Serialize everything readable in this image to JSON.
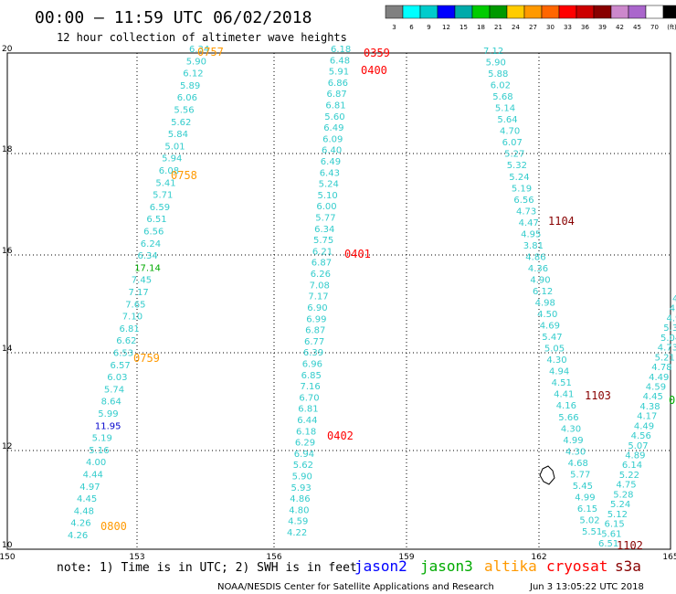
{
  "header": {
    "title": "00:00 – 11:59 UTC 06/02/2018",
    "subtitle": "12 hour collection of altimeter wave heights"
  },
  "colorbar": {
    "labels": [
      "3",
      "6",
      "9",
      "12",
      "15",
      "18",
      "21",
      "24",
      "27",
      "30",
      "33",
      "36",
      "39",
      "42",
      "45",
      "70",
      "(ft)"
    ],
    "colors": [
      "#808080",
      "#00ffff",
      "#00cccc",
      "#0000ff",
      "#00aaaa",
      "#00cc00",
      "#009900",
      "#ffcc00",
      "#ff9900",
      "#ff6600",
      "#ff0000",
      "#cc0000",
      "#880000",
      "#cc88cc",
      "#aa66cc",
      "#ffffff",
      "#000000"
    ]
  },
  "axes": {
    "lon_ticks": [
      "150",
      "153",
      "156",
      "159",
      "162",
      "165"
    ],
    "lat_ticks": [
      "10",
      "12",
      "14",
      "16",
      "18",
      "20"
    ]
  },
  "tracks": [
    {
      "id": "track-a",
      "color": "#33cccc",
      "values": [
        "6.34",
        "5.90",
        "6.12",
        "5.89",
        "6.06",
        "5.56",
        "5.62",
        "5.84",
        "5.01",
        "5.94",
        "6.08",
        "5.41",
        "5.71",
        "6.59",
        "6.51",
        "6.56",
        "6.24",
        "6.34",
        "17.14",
        "7.45",
        "7.17",
        "7.65",
        "7.10",
        "6.81",
        "6.62",
        "6.53",
        "6.57",
        "6.03",
        "5.74",
        "8.64",
        "5.99",
        "11.95",
        "5.19",
        "5.16",
        "4.00",
        "4.44",
        "4.97",
        "4.45",
        "4.48",
        "4.26",
        "4.26"
      ],
      "value_colors": {
        "18": "#00aa00",
        "31": "#0000cc"
      }
    },
    {
      "id": "track-b",
      "color": "#33cccc",
      "values": [
        "6.18",
        "6.48",
        "5.91",
        "6.86",
        "6.87",
        "6.81",
        "5.60",
        "6.49",
        "6.09",
        "6.40",
        "6.49",
        "6.43",
        "5.24",
        "5.10",
        "6.00",
        "5.77",
        "6.34",
        "5.75",
        "6.21",
        "6.87",
        "6.26",
        "7.08",
        "7.17",
        "6.90",
        "6.99",
        "6.87",
        "6.77",
        "6.39",
        "6.96",
        "6.85",
        "7.16",
        "6.70",
        "6.81",
        "6.44",
        "6.18",
        "6.29",
        "6.94",
        "5.62",
        "5.90",
        "5.93",
        "4.86",
        "4.80",
        "4.59",
        "4.22"
      ]
    },
    {
      "id": "track-c",
      "color": "#33cccc",
      "values": [
        "7.12",
        "5.90",
        "5.88",
        "6.02",
        "5.68",
        "5.14",
        "5.64",
        "4.70",
        "6.07",
        "5.27",
        "5.32",
        "5.24",
        "5.19",
        "6.56",
        "4.73",
        "4.47",
        "4.95",
        "3.81",
        "4.86",
        "4.36",
        "4.90",
        "6.12",
        "4.98",
        "4.50",
        "4.69",
        "5.47",
        "5.05",
        "4.30",
        "4.94",
        "4.51",
        "4.41",
        "4.16",
        "5.66",
        "4.30",
        "4.99",
        "4.30",
        "4.68",
        "5.77",
        "5.45",
        "4.99",
        "6.15",
        "5.02",
        "5.51"
      ]
    },
    {
      "id": "track-d",
      "color": "#33cccc",
      "values": [
        "4.",
        "4.",
        "4.9",
        "5.3",
        "5.04",
        "4.73",
        "5.21",
        "4.78",
        "4.49",
        "4.59",
        "4.45",
        "4.38",
        "4.17",
        "4.49",
        "4.56",
        "5.07",
        "4.89",
        "6.14",
        "5.22",
        "4.75",
        "5.28",
        "5.24",
        "5.12",
        "6.15",
        "5.61",
        "6.51"
      ]
    }
  ],
  "time_labels": [
    {
      "text": "0757",
      "color": "#ff9900"
    },
    {
      "text": "0758",
      "color": "#ff9900"
    },
    {
      "text": "0759",
      "color": "#ff9900"
    },
    {
      "text": "0800",
      "color": "#ff9900"
    },
    {
      "text": "0359",
      "color": "#ff0000"
    },
    {
      "text": "0400",
      "color": "#ff0000"
    },
    {
      "text": "0401",
      "color": "#ff0000"
    },
    {
      "text": "0402",
      "color": "#ff0000"
    },
    {
      "text": "1104",
      "color": "#880000"
    },
    {
      "text": "1103",
      "color": "#880000"
    },
    {
      "text": "1102",
      "color": "#880000"
    },
    {
      "text": "0",
      "color": "#00aa00"
    }
  ],
  "note": "note: 1) Time is in UTC; 2) SWH is in feet",
  "satellites": [
    {
      "name": "jason2",
      "color": "#0000ff"
    },
    {
      "name": "jason3",
      "color": "#00aa00"
    },
    {
      "name": "altika",
      "color": "#ff9900"
    },
    {
      "name": "cryosat",
      "color": "#ff0000"
    },
    {
      "name": "s3a",
      "color": "#880000"
    }
  ],
  "credit": "NOAA/NESDIS Center for Satellite Applications and Research",
  "timestamp": "Jun  3 13:05:22 UTC 2018"
}
